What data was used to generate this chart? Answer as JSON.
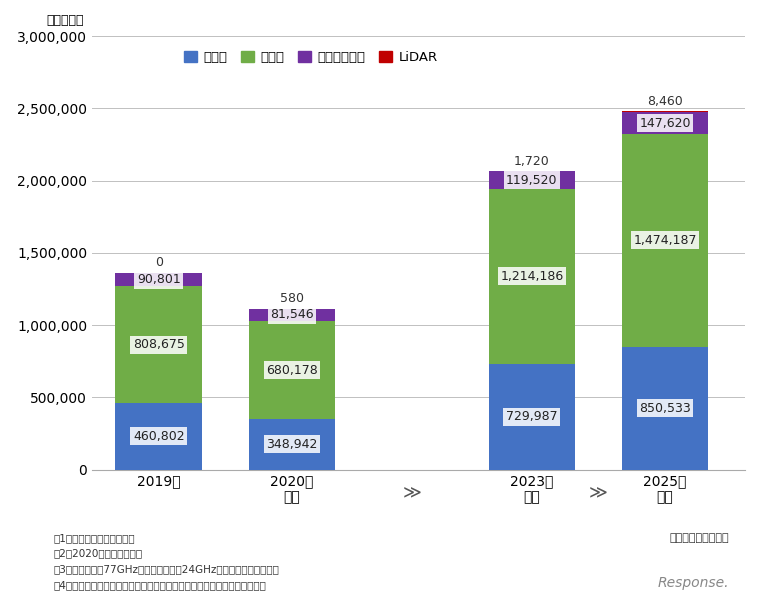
{
  "categories": [
    "2019年",
    "2020年\n予測",
    "2023年\n予測",
    "2025年\n予測"
  ],
  "radar": [
    460802,
    348942,
    729987,
    850533
  ],
  "camera": [
    808675,
    680178,
    1214186,
    1474187
  ],
  "ultrasonic": [
    90801,
    81546,
    119520,
    147620
  ],
  "lidar": [
    0,
    580,
    1720,
    8460
  ],
  "colors": {
    "radar": "#4472C4",
    "camera": "#70AD47",
    "ultrasonic": "#7030A0",
    "lidar": "#C00000"
  },
  "ylabel": "（百万円）",
  "ylim": [
    0,
    3000000
  ],
  "yticks": [
    0,
    500000,
    1000000,
    1500000,
    2000000,
    2500000,
    3000000
  ],
  "legend_labels": [
    "レーダ",
    "カメラ",
    "超音波センサ",
    "LiDAR"
  ],
  "notes": [
    "注1．メーカ出荷金額ベース",
    "注2．2020年以降は予測値",
    "注3．レーダには77GHzミリ波レーダ、24GHz準ミリ波レーダを含む",
    "注4．カメラにはセンシングカメラ、リア／サラウンドビューカメラを含む"
  ],
  "source_text": "矢野経済研究所調べ",
  "background_color": "#ffffff",
  "grid_color": "#c0c0c0",
  "bar_width": 0.65,
  "font_size_value": 9,
  "lidar_label_2019": "0"
}
